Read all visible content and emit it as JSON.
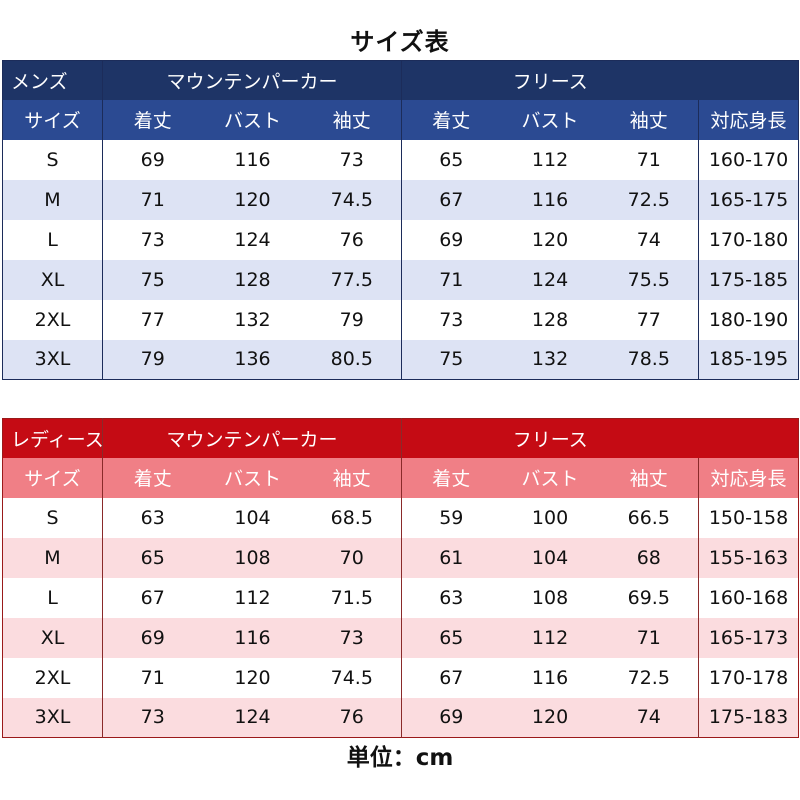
{
  "title": "サイズ表",
  "unit_label": "単位：cm",
  "colors": {
    "mens_group_bg": "#1e3466",
    "mens_header_bg": "#2b4a92",
    "mens_stripe": "#dde3f4",
    "ladies_group_bg": "#c50b14",
    "ladies_header_bg": "#f07f86",
    "ladies_stripe": "#fbdcdf"
  },
  "tables": {
    "mens": {
      "category": "メンズ",
      "group1": "マウンテンパーカー",
      "group2": "フリース",
      "headers": [
        "サイズ",
        "着丈",
        "バスト",
        "袖丈",
        "着丈",
        "バスト",
        "袖丈",
        "対応身長"
      ],
      "rows": [
        [
          "S",
          "69",
          "116",
          "73",
          "65",
          "112",
          "71",
          "160-170"
        ],
        [
          "M",
          "71",
          "120",
          "74.5",
          "67",
          "116",
          "72.5",
          "165-175"
        ],
        [
          "L",
          "73",
          "124",
          "76",
          "69",
          "120",
          "74",
          "170-180"
        ],
        [
          "XL",
          "75",
          "128",
          "77.5",
          "71",
          "124",
          "75.5",
          "175-185"
        ],
        [
          "2XL",
          "77",
          "132",
          "79",
          "73",
          "128",
          "77",
          "180-190"
        ],
        [
          "3XL",
          "79",
          "136",
          "80.5",
          "75",
          "132",
          "78.5",
          "185-195"
        ]
      ]
    },
    "ladies": {
      "category": "レディース",
      "group1": "マウンテンパーカー",
      "group2": "フリース",
      "headers": [
        "サイズ",
        "着丈",
        "バスト",
        "袖丈",
        "着丈",
        "バスト",
        "袖丈",
        "対応身長"
      ],
      "rows": [
        [
          "S",
          "63",
          "104",
          "68.5",
          "59",
          "100",
          "66.5",
          "150-158"
        ],
        [
          "M",
          "65",
          "108",
          "70",
          "61",
          "104",
          "68",
          "155-163"
        ],
        [
          "L",
          "67",
          "112",
          "71.5",
          "63",
          "108",
          "69.5",
          "160-168"
        ],
        [
          "XL",
          "69",
          "116",
          "73",
          "65",
          "112",
          "71",
          "165-173"
        ],
        [
          "2XL",
          "71",
          "120",
          "74.5",
          "67",
          "116",
          "72.5",
          "170-178"
        ],
        [
          "3XL",
          "73",
          "124",
          "76",
          "69",
          "120",
          "74",
          "175-183"
        ]
      ]
    }
  }
}
